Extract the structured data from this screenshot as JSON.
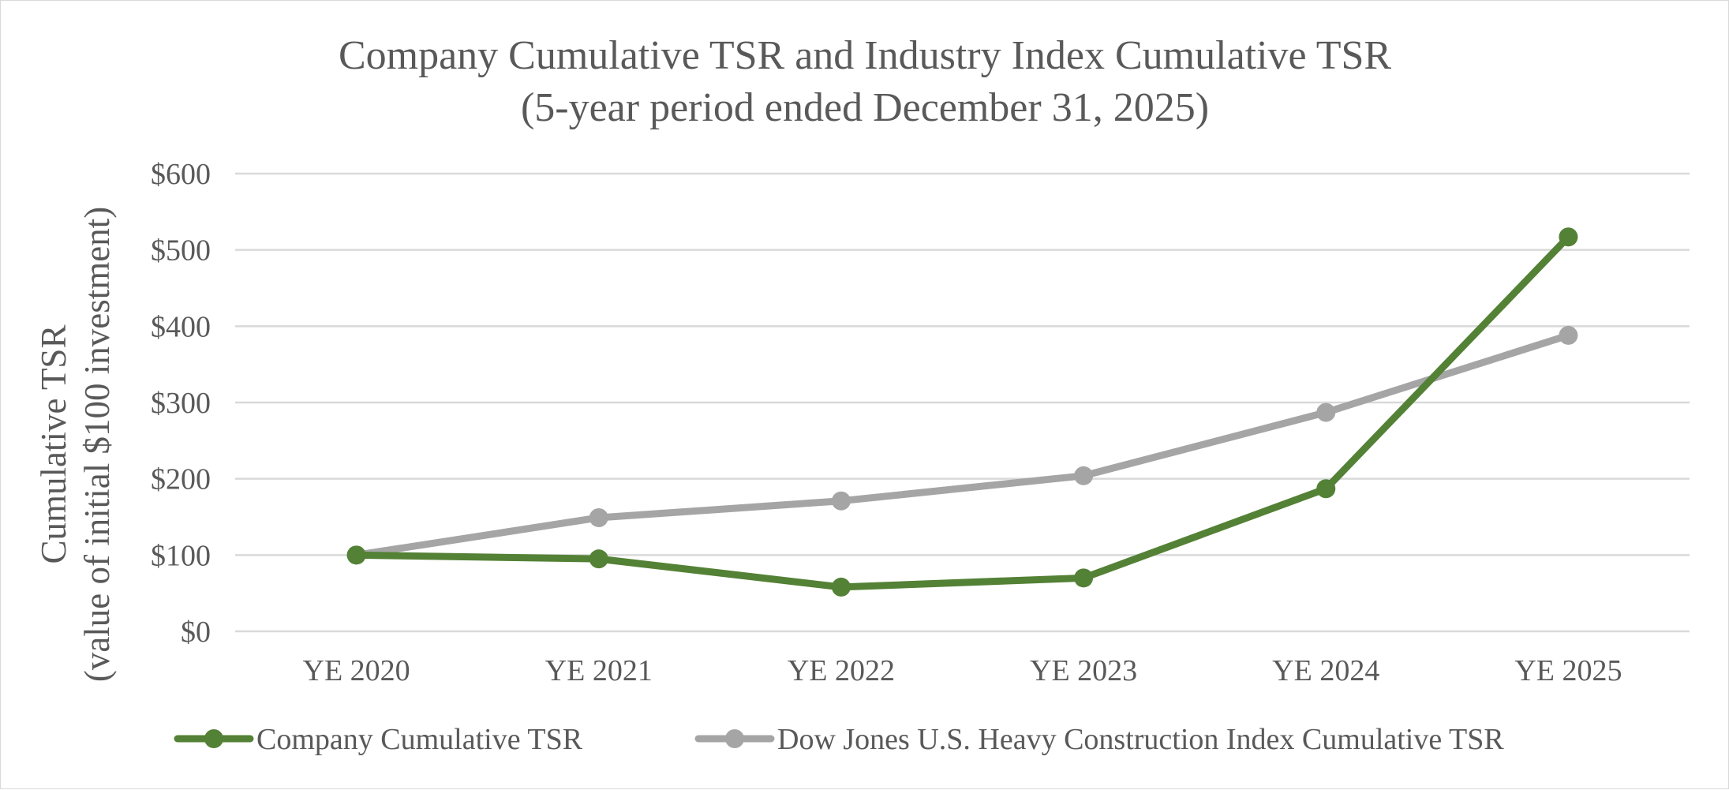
{
  "chart_data": {
    "type": "line",
    "title": "Company Cumulative TSR and Industry Index Cumulative TSR",
    "subtitle": "(5-year period ended December 31, 2025)",
    "ylabel": "Cumulative TSR",
    "ylabel_sub": "(value of initial $100 investment)",
    "categories": [
      "YE 2020",
      "YE 2021",
      "YE 2022",
      "YE 2023",
      "YE 2024",
      "YE 2025"
    ],
    "ylim": [
      0,
      600
    ],
    "yticks": [
      0,
      100,
      200,
      300,
      400,
      500,
      600
    ],
    "ytick_labels": [
      "$0",
      "$100",
      "$200",
      "$300",
      "$400",
      "$500",
      "$600"
    ],
    "grid": true,
    "legend_position": "bottom",
    "series": [
      {
        "name": "Company Cumulative TSR",
        "color": "#538135",
        "values": [
          100,
          95,
          58,
          70,
          187,
          517
        ]
      },
      {
        "name": "Dow Jones U.S. Heavy Construction Index Cumulative TSR",
        "color": "#a5a5a5",
        "values": [
          100,
          149,
          171,
          204,
          287,
          388
        ]
      }
    ]
  }
}
